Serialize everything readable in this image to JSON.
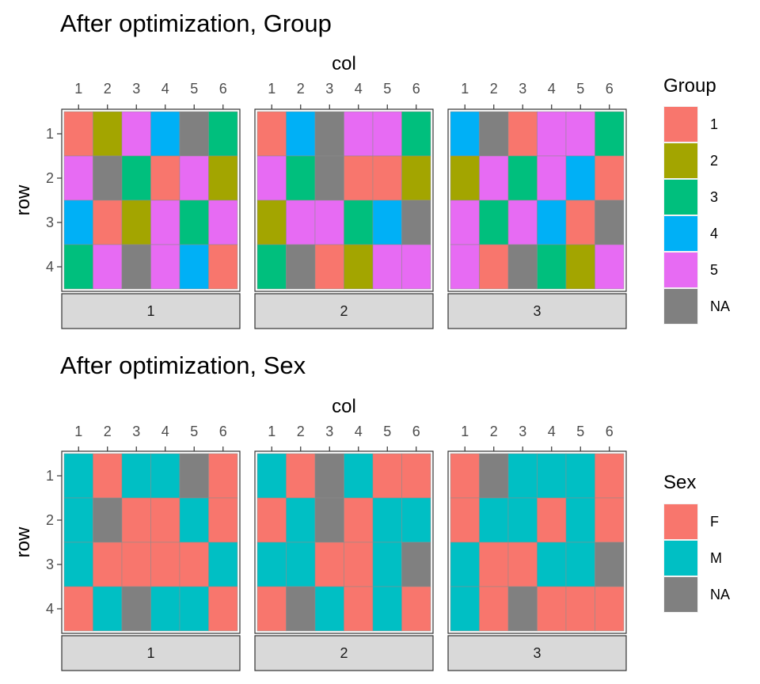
{
  "colors": {
    "Group": {
      "1": "#F8766D",
      "2": "#A3A500",
      "3": "#00BF7D",
      "4": "#00B0F6",
      "5": "#E76BF3",
      "NA": "#808080"
    },
    "Sex": {
      "F": "#F8766D",
      "M": "#00BFC4",
      "NA": "#808080"
    }
  },
  "chart_data": [
    {
      "type": "heatmap",
      "title": "After optimization, Group",
      "xlabel": "col",
      "ylabel": "row",
      "x_ticks": [
        "1",
        "2",
        "3",
        "4",
        "5",
        "6"
      ],
      "y_ticks": [
        "1",
        "2",
        "3",
        "4"
      ],
      "facets": [
        "1",
        "2",
        "3"
      ],
      "legend": {
        "title": "Group",
        "entries": [
          "1",
          "2",
          "3",
          "4",
          "5",
          "NA"
        ],
        "position": "right"
      },
      "cells": [
        [
          [
            "1",
            "2",
            "5",
            "4",
            "NA",
            "3"
          ],
          [
            "5",
            "NA",
            "3",
            "1",
            "5",
            "2"
          ],
          [
            "4",
            "1",
            "2",
            "5",
            "3",
            "5"
          ],
          [
            "3",
            "5",
            "NA",
            "5",
            "4",
            "1"
          ]
        ],
        [
          [
            "1",
            "4",
            "NA",
            "5",
            "5",
            "3"
          ],
          [
            "5",
            "3",
            "NA",
            "1",
            "1",
            "2"
          ],
          [
            "2",
            "5",
            "5",
            "3",
            "4",
            "NA"
          ],
          [
            "3",
            "NA",
            "1",
            "2",
            "5",
            "5"
          ]
        ],
        [
          [
            "4",
            "NA",
            "1",
            "5",
            "5",
            "3"
          ],
          [
            "2",
            "5",
            "3",
            "5",
            "4",
            "1"
          ],
          [
            "5",
            "3",
            "5",
            "4",
            "1",
            "NA"
          ],
          [
            "5",
            "1",
            "NA",
            "3",
            "2",
            "5"
          ]
        ]
      ]
    },
    {
      "type": "heatmap",
      "title": "After optimization, Sex",
      "xlabel": "col",
      "ylabel": "row",
      "x_ticks": [
        "1",
        "2",
        "3",
        "4",
        "5",
        "6"
      ],
      "y_ticks": [
        "1",
        "2",
        "3",
        "4"
      ],
      "facets": [
        "1",
        "2",
        "3"
      ],
      "legend": {
        "title": "Sex",
        "entries": [
          "F",
          "M",
          "NA"
        ],
        "position": "right"
      },
      "cells": [
        [
          [
            "M",
            "F",
            "M",
            "M",
            "NA",
            "F"
          ],
          [
            "M",
            "NA",
            "F",
            "F",
            "M",
            "F"
          ],
          [
            "M",
            "F",
            "F",
            "F",
            "F",
            "M"
          ],
          [
            "F",
            "M",
            "NA",
            "M",
            "M",
            "F"
          ]
        ],
        [
          [
            "M",
            "F",
            "NA",
            "M",
            "F",
            "F"
          ],
          [
            "F",
            "M",
            "NA",
            "F",
            "M",
            "M"
          ],
          [
            "M",
            "M",
            "F",
            "F",
            "M",
            "NA"
          ],
          [
            "F",
            "NA",
            "M",
            "F",
            "M",
            "F"
          ]
        ],
        [
          [
            "F",
            "NA",
            "M",
            "M",
            "M",
            "F"
          ],
          [
            "F",
            "M",
            "M",
            "F",
            "M",
            "F"
          ],
          [
            "M",
            "F",
            "F",
            "M",
            "M",
            "NA"
          ],
          [
            "M",
            "F",
            "NA",
            "F",
            "F",
            "F"
          ]
        ]
      ]
    }
  ]
}
